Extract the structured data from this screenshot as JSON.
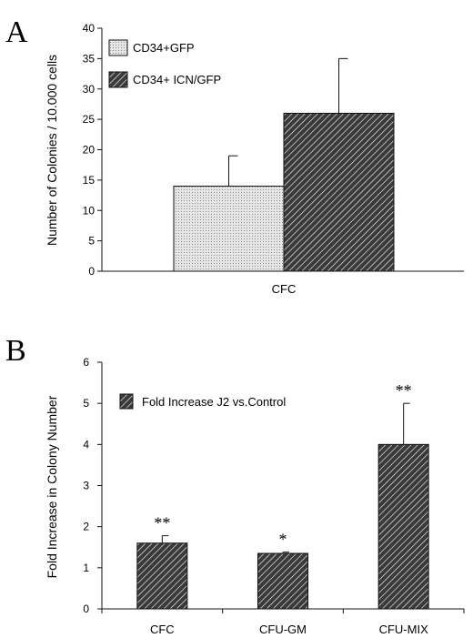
{
  "chart_data": [
    {
      "panel_label": "A",
      "type": "bar",
      "categories": [
        "CFC"
      ],
      "series": [
        {
          "name": "CD34+GFP",
          "values": [
            14
          ],
          "errors": [
            5
          ],
          "fill": "dots"
        },
        {
          "name": "CD34+ ICN/GFP",
          "values": [
            26
          ],
          "errors": [
            9
          ],
          "fill": "hatch"
        }
      ],
      "ylabel": "Number of Colonies / 10.000 cells",
      "xlabel": "",
      "ylim": [
        0,
        40
      ],
      "yticks": [
        0,
        5,
        10,
        15,
        20,
        25,
        30,
        35,
        40
      ],
      "legend_position": "top-left",
      "grid": false
    },
    {
      "panel_label": "B",
      "type": "bar",
      "categories": [
        "CFC",
        "CFU-GM",
        "CFU-MIX"
      ],
      "series": [
        {
          "name": "Fold Increase J2 vs.Control",
          "values": [
            1.6,
            1.35,
            4.0
          ],
          "errors": [
            0.18,
            0.03,
            1.0
          ],
          "fill": "hatch"
        }
      ],
      "significance": [
        "**",
        "*",
        "**"
      ],
      "ylabel": "Fold Increase in Colony Number",
      "xlabel": "",
      "ylim": [
        0,
        6
      ],
      "yticks": [
        0,
        1,
        2,
        3,
        4,
        5,
        6
      ],
      "legend_position": "top-left",
      "grid": false
    }
  ],
  "colors": {
    "ink": "#111111",
    "dots_bg": "#e6e6e6",
    "hatch_bg": "#3a3a3a"
  }
}
